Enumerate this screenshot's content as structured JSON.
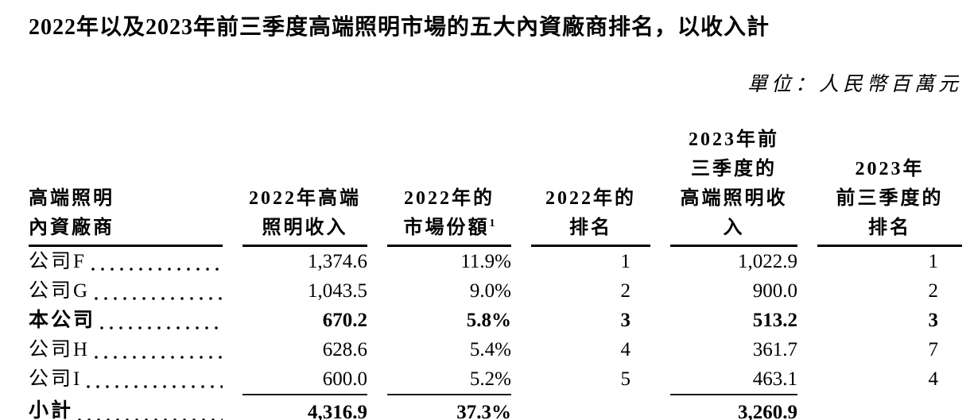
{
  "title": "2022年以及2023年前三季度高端照明市場的五大內資廠商排名，以收入計",
  "unit_note": "單位：人民幣百萬元",
  "table": {
    "columns": [
      {
        "lines": [
          "高端照明",
          "內資廠商"
        ]
      },
      {
        "lines": [
          "2022年高端",
          "照明收入"
        ]
      },
      {
        "lines": [
          "2022年的",
          "市場份額"
        ],
        "sup": "1"
      },
      {
        "lines": [
          "2022年的",
          "排名"
        ]
      },
      {
        "lines": [
          "2023年前",
          "三季度的",
          "高端照明收入"
        ]
      },
      {
        "lines": [
          "2023年",
          "前三季度的",
          "排名"
        ]
      }
    ],
    "rows": [
      {
        "company": "公司F",
        "rev2022": "1,374.6",
        "share2022": "11.9%",
        "rank2022": "1",
        "rev2023q3": "1,022.9",
        "rank2023q3": "1"
      },
      {
        "company": "公司G",
        "rev2022": "1,043.5",
        "share2022": "9.0%",
        "rank2022": "2",
        "rev2023q3": "900.0",
        "rank2023q3": "2"
      },
      {
        "company": "本公司",
        "rev2022": "670.2",
        "share2022": "5.8%",
        "rank2022": "3",
        "rev2023q3": "513.2",
        "rank2023q3": "3"
      },
      {
        "company": "公司H",
        "rev2022": "628.6",
        "share2022": "5.4%",
        "rank2022": "4",
        "rev2023q3": "361.7",
        "rank2023q3": "7"
      },
      {
        "company": "公司I",
        "rev2022": "600.0",
        "share2022": "5.2%",
        "rank2022": "5",
        "rev2023q3": "463.1",
        "rank2023q3": "4"
      }
    ],
    "subtotal": {
      "label": "小計",
      "rev2022": "4,316.9",
      "share2022": "37.3%",
      "rev2023q3": "3,260.9"
    }
  }
}
